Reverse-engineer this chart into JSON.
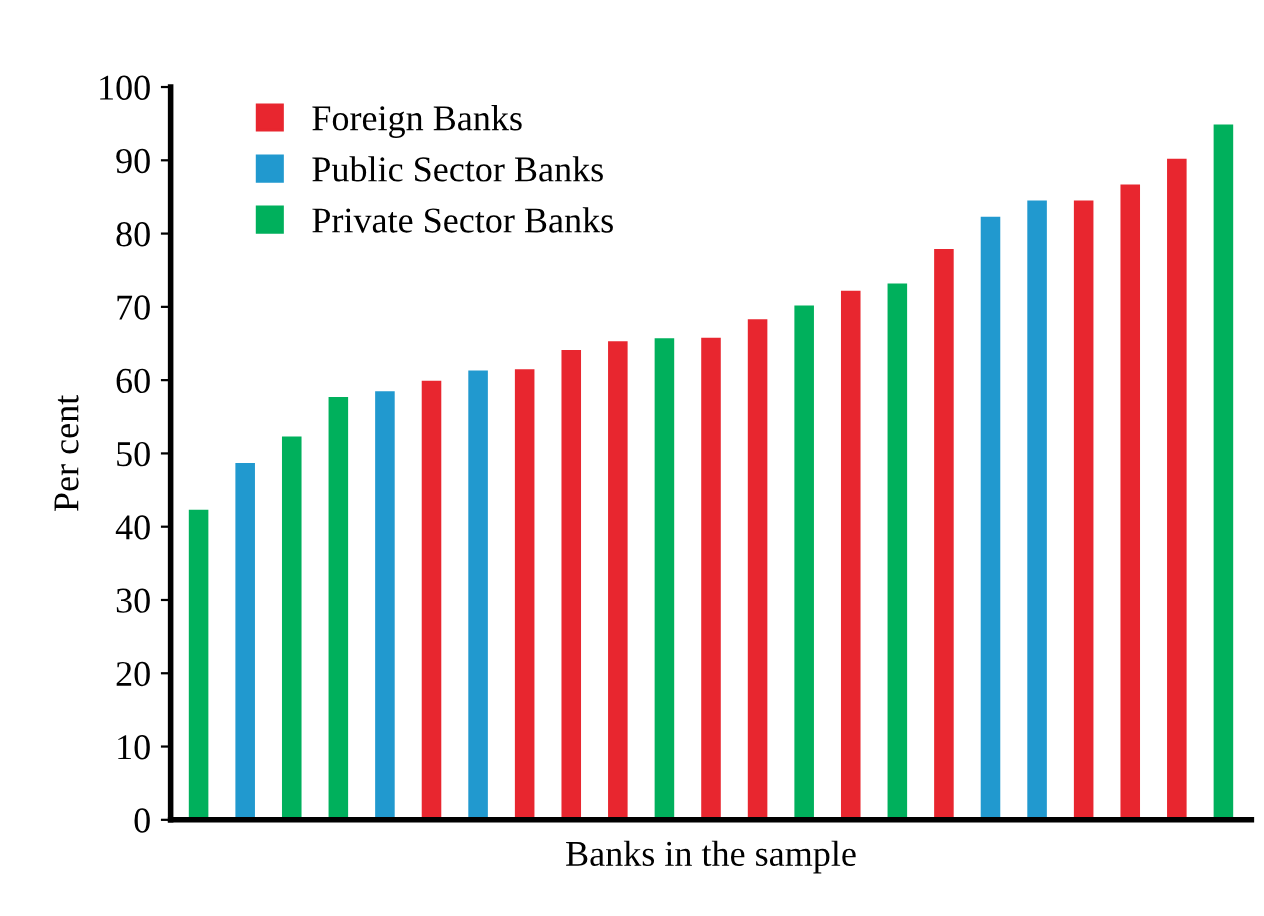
{
  "chart_data": {
    "type": "bar",
    "xlabel": "Banks in the sample",
    "ylabel": "Per cent",
    "categories": [
      null,
      null,
      null,
      null,
      null,
      null,
      null,
      null,
      null,
      null,
      null,
      null,
      null,
      null,
      null,
      null,
      null,
      null,
      null,
      null,
      null,
      null,
      null
    ],
    "series": [
      {
        "name": "Foreign Banks",
        "color": "#e8262f",
        "values": [
          null,
          null,
          null,
          null,
          null,
          59.9,
          null,
          61.5,
          64.1,
          65.3,
          null,
          65.8,
          68.3,
          null,
          72.2,
          null,
          77.9,
          null,
          null,
          84.5,
          86.7,
          90.2,
          null
        ]
      },
      {
        "name": "Public Sector Banks",
        "color": "#2199cf",
        "values": [
          null,
          48.7,
          null,
          null,
          58.5,
          null,
          61.3,
          null,
          null,
          null,
          null,
          null,
          null,
          null,
          null,
          null,
          null,
          82.3,
          84.5,
          null,
          null,
          null,
          null
        ]
      },
      {
        "name": "Private Sector Banks",
        "color": "#00b05c",
        "values": [
          42.3,
          null,
          52.3,
          57.7,
          null,
          null,
          null,
          null,
          null,
          null,
          65.7,
          null,
          null,
          70.2,
          null,
          73.2,
          null,
          null,
          null,
          null,
          null,
          null,
          94.9
        ]
      }
    ],
    "ylim": [
      0,
      100
    ],
    "yticks": [
      0,
      10,
      20,
      30,
      40,
      50,
      60,
      70,
      80,
      90,
      100
    ],
    "grid": false,
    "legend": "top left"
  }
}
